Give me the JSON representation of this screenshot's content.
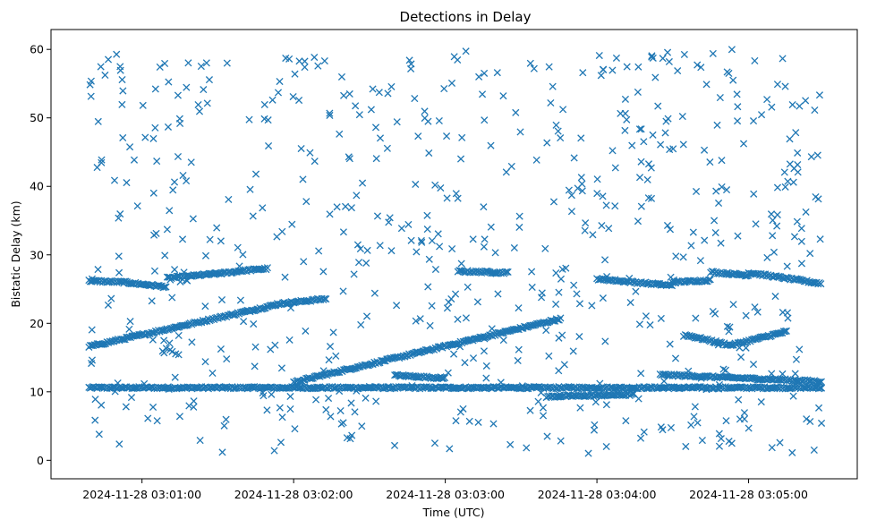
{
  "chart_data": {
    "type": "scatter",
    "title": "Detections in Delay",
    "xlabel": "Time (UTC)",
    "ylabel": "Bistatic Delay (km)",
    "marker": "x",
    "color": "#1f77b4",
    "grid": false,
    "xlim": [
      "2024-11-28 03:00:24",
      "2024-11-28 03:05:43"
    ],
    "ylim": [
      -2.7,
      62.9
    ],
    "x_ticks": [
      "2024-11-28 03:01:00",
      "2024-11-28 03:02:00",
      "2024-11-28 03:03:00",
      "2024-11-28 03:04:00",
      "2024-11-28 03:05:00"
    ],
    "y_ticks": [
      0,
      10,
      20,
      30,
      40,
      50,
      60
    ],
    "time_range": [
      "2024-11-28 03:00:39",
      "2024-11-28 03:05:29"
    ],
    "tracks": [
      {
        "start": "2024-11-28 03:00:39",
        "end": "2024-11-28 03:05:29",
        "y_start": 10.6,
        "y_end": 10.6
      },
      {
        "start": "2024-11-28 03:00:39",
        "end": "2024-11-28 03:00:53",
        "y_start": 26.2,
        "y_end": 26.0
      },
      {
        "start": "2024-11-28 03:00:53",
        "end": "2024-11-28 03:01:10",
        "y_start": 26.0,
        "y_end": 25.3
      },
      {
        "start": "2024-11-28 03:01:10",
        "end": "2024-11-28 03:01:37",
        "y_start": 26.6,
        "y_end": 27.5
      },
      {
        "start": "2024-11-28 03:01:37",
        "end": "2024-11-28 03:01:50",
        "y_start": 27.6,
        "y_end": 28.0
      },
      {
        "start": "2024-11-28 03:00:39",
        "end": "2024-11-28 03:01:53",
        "y_start": 16.6,
        "y_end": 22.7
      },
      {
        "start": "2024-11-28 03:01:53",
        "end": "2024-11-28 03:02:13",
        "y_start": 22.8,
        "y_end": 23.6
      },
      {
        "start": "2024-11-28 03:02:00",
        "end": "2024-11-28 03:03:46",
        "y_start": 11.4,
        "y_end": 20.7
      },
      {
        "start": "2024-11-28 03:02:40",
        "end": "2024-11-28 03:03:00",
        "y_start": 12.4,
        "y_end": 12.0
      },
      {
        "start": "2024-11-28 03:03:40",
        "end": "2024-11-28 03:04:15",
        "y_start": 9.3,
        "y_end": 9.6
      },
      {
        "start": "2024-11-28 03:03:05",
        "end": "2024-11-28 03:03:25",
        "y_start": 27.6,
        "y_end": 27.4
      },
      {
        "start": "2024-11-28 03:04:00",
        "end": "2024-11-28 03:04:30",
        "y_start": 26.5,
        "y_end": 25.5
      },
      {
        "start": "2024-11-28 03:04:30",
        "end": "2024-11-28 03:04:45",
        "y_start": 26.0,
        "y_end": 26.3
      },
      {
        "start": "2024-11-28 03:04:45",
        "end": "2024-11-28 03:05:00",
        "y_start": 27.5,
        "y_end": 27.0
      },
      {
        "start": "2024-11-28 03:05:00",
        "end": "2024-11-28 03:05:29",
        "y_start": 27.4,
        "y_end": 25.8
      },
      {
        "start": "2024-11-28 03:04:35",
        "end": "2024-11-28 03:04:53",
        "y_start": 18.3,
        "y_end": 16.8
      },
      {
        "start": "2024-11-28 03:04:53",
        "end": "2024-11-28 03:05:15",
        "y_start": 16.8,
        "y_end": 18.8
      },
      {
        "start": "2024-11-28 03:04:25",
        "end": "2024-11-28 03:05:29",
        "y_start": 12.5,
        "y_end": 11.5
      }
    ],
    "scatter": {
      "count": 650,
      "y_range": [
        1,
        60
      ],
      "description": "uniformly scattered detections"
    }
  }
}
